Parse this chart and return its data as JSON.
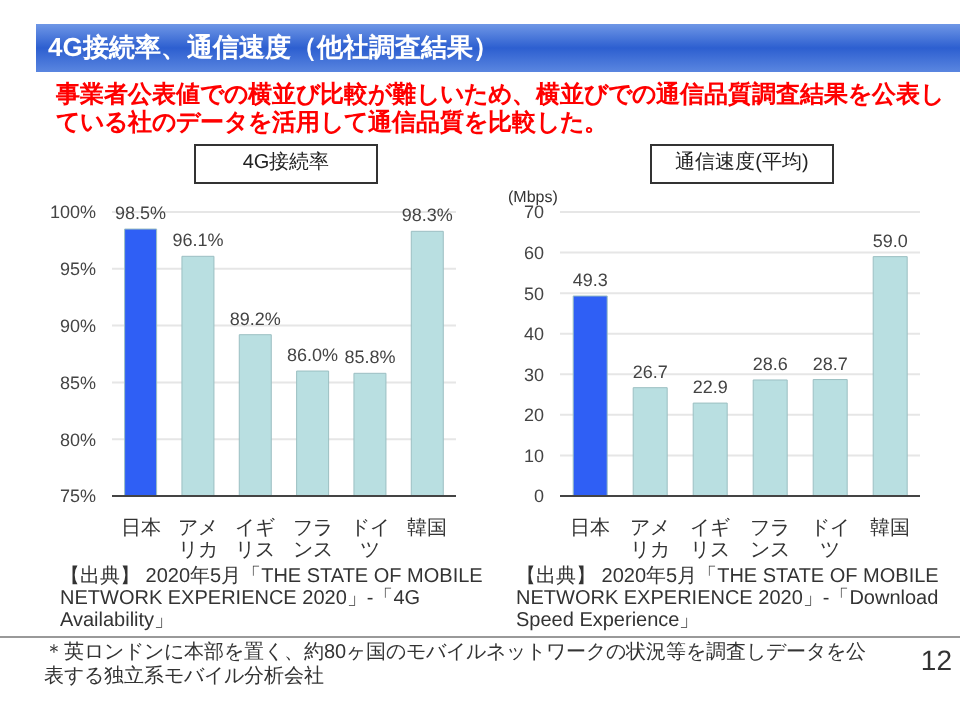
{
  "chart_data": [
    {
      "type": "bar",
      "title": "4G接続率",
      "categories": [
        "日本",
        "アメリカ",
        "イギリス",
        "フランス",
        "ドイツ",
        "韓国"
      ],
      "values": [
        98.5,
        96.1,
        89.2,
        86.0,
        85.8,
        98.3
      ],
      "colors": [
        "#2f5ff5",
        "#b9dfe1",
        "#b9dfe1",
        "#b9dfe1",
        "#b9dfe1",
        "#b9dfe1"
      ],
      "value_labels": [
        "98.5%",
        "96.1%",
        "89.2%",
        "86.0%",
        "85.8%",
        "98.3%"
      ],
      "ylim": [
        75,
        100
      ],
      "yticks": [
        {
          "value": 75,
          "label": "75%"
        },
        {
          "value": 80,
          "label": "80%"
        },
        {
          "value": 85,
          "label": "85%"
        },
        {
          "value": 90,
          "label": "90%"
        },
        {
          "value": 95,
          "label": "95%"
        },
        {
          "value": 100,
          "label": "100%"
        }
      ],
      "grid": "y",
      "annotations": [
        "4G接続率、通信速度（他社調査結果）",
        "事業者公表値での横並び比較が難しいため、横並びでの通信品質調査結果を公表している社のデータを活用して通信品質を比較した。",
        "【出典】 2020年5月「THE STATE OF MOBILE NETWORK EXPERIENCE 2020」-「4G Availability」"
      ]
    },
    {
      "type": "bar",
      "title": "通信速度(平均)",
      "ylabel": "(Mbps)",
      "categories": [
        "日本",
        "アメリカ",
        "イギリス",
        "フランス",
        "ドイツ",
        "韓国"
      ],
      "values": [
        49.3,
        26.7,
        22.9,
        28.6,
        28.7,
        59.0
      ],
      "colors": [
        "#2f5ff5",
        "#b9dfe1",
        "#b9dfe1",
        "#b9dfe1",
        "#b9dfe1",
        "#b9dfe1"
      ],
      "value_labels": [
        "49.3",
        "26.7",
        "22.9",
        "28.6",
        "28.7",
        "59.0"
      ],
      "ylim": [
        0,
        70
      ],
      "yticks": [
        0,
        10,
        20,
        30,
        40,
        50,
        60,
        70
      ],
      "grid": "y",
      "annotations": [
        "【出典】 2020年5月「THE STATE OF MOBILE NETWORK EXPERIENCE 2020」-「Download Speed Experience」",
        "＊英ロンドンに本部を置く、約80ヶ国のモバイルネットワークの状況等を調査しデータを公表する独立系モバイル分析会社",
        "12"
      ]
    }
  ]
}
